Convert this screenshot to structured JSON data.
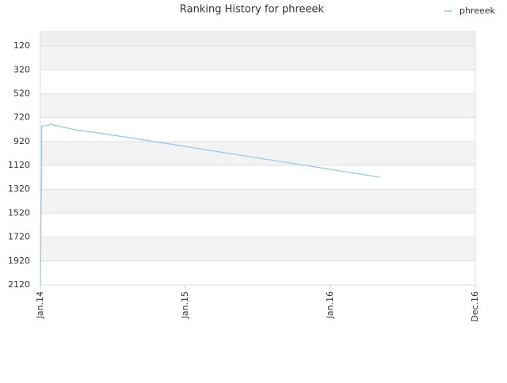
{
  "chart_data": {
    "type": "line",
    "title": "Ranking History for phreeek",
    "x": [
      0,
      0.05,
      0.1,
      0.1,
      0.7,
      0.8,
      1,
      2.8,
      5,
      28.1
    ],
    "series": [
      {
        "name": "phreeek",
        "color": "#99c9ee",
        "values": [
          2120,
          1500,
          1150,
          790,
          785,
          770,
          780,
          820,
          850,
          1218
        ]
      }
    ],
    "xlim": [
      0,
      36
    ],
    "xticks": [
      {
        "value": 0,
        "label": "Jan.14"
      },
      {
        "value": 12,
        "label": "Jan.15"
      },
      {
        "value": 24,
        "label": "Jan.16"
      },
      {
        "value": 36,
        "label": "Dec.16"
      }
    ],
    "ylim": [
      0,
      2120
    ],
    "y_inverted": true,
    "yticks": [
      120,
      320,
      520,
      720,
      920,
      1120,
      1320,
      1520,
      1720,
      1920,
      2120
    ],
    "grid": true,
    "legend": "top-right"
  }
}
